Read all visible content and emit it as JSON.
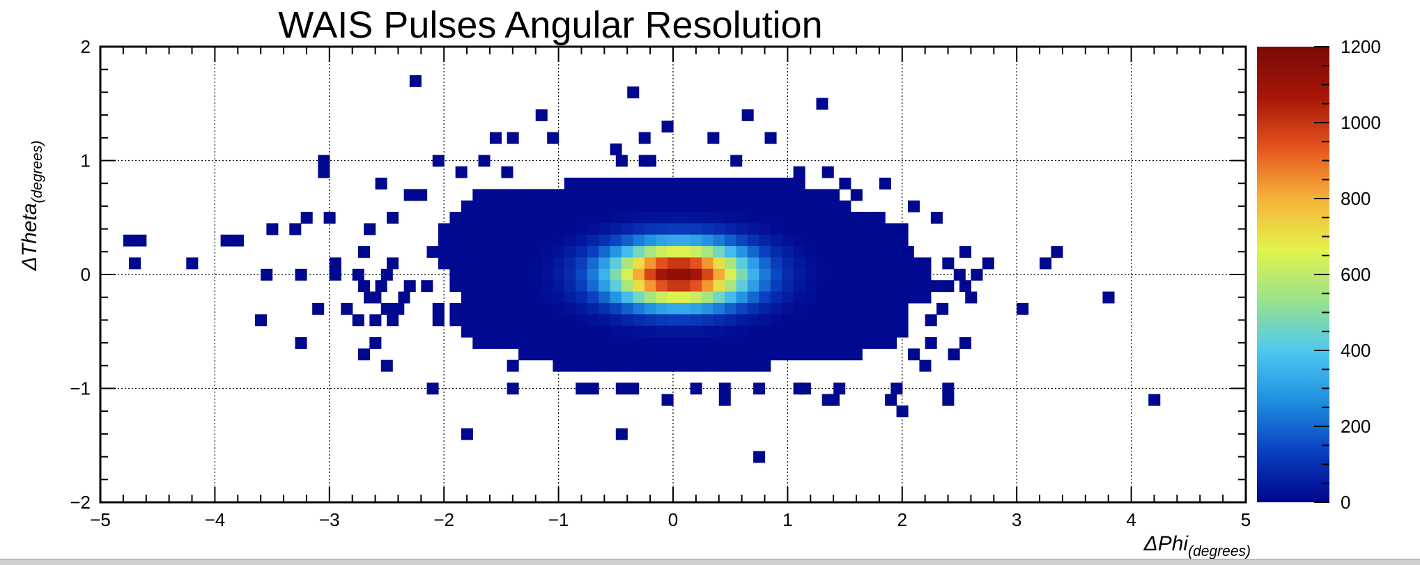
{
  "chart_data": {
    "type": "heatmap",
    "title": "WAIS Pulses Angular Resolution",
    "xlabel": "ΔPhi",
    "xlabel_sub": "(degrees)",
    "ylabel": "ΔTheta",
    "ylabel_sub": "(degrees)",
    "xlim": [
      -5,
      5
    ],
    "ylim": [
      -2,
      2
    ],
    "x_ticks": [
      "−5",
      "−4",
      "−3",
      "−2",
      "−1",
      "0",
      "1",
      "2",
      "3",
      "4",
      "5"
    ],
    "y_ticks": [
      "−2",
      "−1",
      "0",
      "1",
      "2"
    ],
    "grid": true,
    "colorbar": {
      "range": [
        0,
        1200
      ],
      "ticks": [
        "0",
        "200",
        "400",
        "600",
        "800",
        "1000",
        "1200"
      ],
      "colormap": "rainbow",
      "colors": [
        "#00068c",
        "#0a3fbf",
        "#1f8fe0",
        "#4fc8f0",
        "#9be38a",
        "#e3f24a",
        "#f7b23a",
        "#e5541e",
        "#a61608",
        "#7a0a05"
      ]
    },
    "bin_width": {
      "x": 0.1,
      "y": 0.1
    },
    "core": {
      "center_x": 0.05,
      "center_y": 0.0,
      "peak": 1150,
      "sigma_x": 0.42,
      "sigma_y": 0.19
    },
    "dense_region_rows": [
      {
        "y": 0.8,
        "x_from": -0.9,
        "x_to": 1.1
      },
      {
        "y": 0.7,
        "x_from": -1.7,
        "x_to": 1.4
      },
      {
        "y": 0.6,
        "x_from": -1.8,
        "x_to": 1.5
      },
      {
        "y": 0.5,
        "x_from": -1.9,
        "x_to": 1.8
      },
      {
        "y": 0.4,
        "x_from": -2.0,
        "x_to": 1.85
      },
      {
        "y": 0.3,
        "x_from": -2.0,
        "x_to": 2.0
      },
      {
        "y": 0.2,
        "x_from": -2.1,
        "x_to": 2.0
      },
      {
        "y": 0.1,
        "x_from": -2.0,
        "x_to": 2.2
      },
      {
        "y": 0.0,
        "x_from": -1.9,
        "x_to": 2.2
      },
      {
        "y": -0.1,
        "x_from": -1.9,
        "x_to": 2.3
      },
      {
        "y": -0.2,
        "x_from": -1.8,
        "x_to": 2.2
      },
      {
        "y": -0.3,
        "x_from": -1.9,
        "x_to": 2.0
      },
      {
        "y": -0.4,
        "x_from": -1.9,
        "x_to": 2.0
      },
      {
        "y": -0.5,
        "x_from": -1.8,
        "x_to": 2.0
      },
      {
        "y": -0.6,
        "x_from": -1.7,
        "x_to": 1.9
      },
      {
        "y": -0.7,
        "x_from": -1.3,
        "x_to": 1.6
      },
      {
        "y": -0.8,
        "x_from": -1.0,
        "x_to": 0.8
      }
    ],
    "sparse_bins": [
      [
        -2.25,
        1.7
      ],
      [
        -0.35,
        1.6
      ],
      [
        1.3,
        1.5
      ],
      [
        -1.15,
        1.4
      ],
      [
        0.65,
        1.4
      ],
      [
        -0.05,
        1.3
      ],
      [
        -1.55,
        1.2
      ],
      [
        -1.4,
        1.2
      ],
      [
        -1.05,
        1.2
      ],
      [
        -0.25,
        1.2
      ],
      [
        0.35,
        1.2
      ],
      [
        0.85,
        1.2
      ],
      [
        -0.5,
        1.1
      ],
      [
        -3.05,
        1.0
      ],
      [
        -2.05,
        1.0
      ],
      [
        -1.65,
        1.0
      ],
      [
        -0.45,
        1.0
      ],
      [
        -0.25,
        1.0
      ],
      [
        -0.2,
        1.0
      ],
      [
        0.55,
        1.0
      ],
      [
        -3.05,
        0.9
      ],
      [
        -1.85,
        0.9
      ],
      [
        -1.45,
        0.9
      ],
      [
        1.1,
        0.9
      ],
      [
        1.35,
        0.9
      ],
      [
        -2.55,
        0.8
      ],
      [
        1.5,
        0.8
      ],
      [
        1.85,
        0.8
      ],
      [
        -2.3,
        0.7
      ],
      [
        -2.2,
        0.7
      ],
      [
        1.6,
        0.7
      ],
      [
        2.1,
        0.6
      ],
      [
        2.3,
        0.5
      ],
      [
        -3.0,
        0.5
      ],
      [
        -3.2,
        0.5
      ],
      [
        -3.5,
        0.4
      ],
      [
        -3.3,
        0.4
      ],
      [
        -2.65,
        0.4
      ],
      [
        -2.45,
        0.5
      ],
      [
        2.0,
        0.4
      ],
      [
        -4.65,
        0.3
      ],
      [
        -4.75,
        0.3
      ],
      [
        -3.9,
        0.3
      ],
      [
        -3.8,
        0.3
      ],
      [
        -2.7,
        0.2
      ],
      [
        2.05,
        0.2
      ],
      [
        2.55,
        0.2
      ],
      [
        3.35,
        0.2
      ],
      [
        -4.7,
        0.1
      ],
      [
        -4.2,
        0.1
      ],
      [
        -2.95,
        0.1
      ],
      [
        -2.45,
        0.1
      ],
      [
        2.4,
        0.1
      ],
      [
        2.75,
        0.1
      ],
      [
        3.25,
        0.1
      ],
      [
        -3.55,
        0.0
      ],
      [
        -3.25,
        0.0
      ],
      [
        -2.95,
        0.0
      ],
      [
        -2.75,
        0.0
      ],
      [
        -2.5,
        0.0
      ],
      [
        2.5,
        0.0
      ],
      [
        2.65,
        0.0
      ],
      [
        -2.7,
        -0.1
      ],
      [
        -2.55,
        -0.1
      ],
      [
        -2.3,
        -0.1
      ],
      [
        -2.15,
        -0.1
      ],
      [
        2.4,
        -0.1
      ],
      [
        2.55,
        -0.1
      ],
      [
        -2.65,
        -0.2
      ],
      [
        -2.6,
        -0.2
      ],
      [
        -2.35,
        -0.2
      ],
      [
        2.6,
        -0.2
      ],
      [
        3.8,
        -0.2
      ],
      [
        -3.1,
        -0.3
      ],
      [
        -2.85,
        -0.3
      ],
      [
        -2.5,
        -0.3
      ],
      [
        -2.4,
        -0.3
      ],
      [
        -2.05,
        -0.3
      ],
      [
        2.35,
        -0.3
      ],
      [
        3.05,
        -0.3
      ],
      [
        -3.6,
        -0.4
      ],
      [
        -2.75,
        -0.4
      ],
      [
        -2.6,
        -0.4
      ],
      [
        -2.45,
        -0.4
      ],
      [
        -2.05,
        -0.4
      ],
      [
        2.25,
        -0.4
      ],
      [
        -3.25,
        -0.6
      ],
      [
        -2.6,
        -0.6
      ],
      [
        2.25,
        -0.6
      ],
      [
        2.55,
        -0.6
      ],
      [
        -2.7,
        -0.7
      ],
      [
        2.1,
        -0.7
      ],
      [
        2.45,
        -0.7
      ],
      [
        -2.5,
        -0.8
      ],
      [
        -1.4,
        -0.8
      ],
      [
        2.2,
        -0.8
      ],
      [
        -2.1,
        -1.0
      ],
      [
        -1.4,
        -1.0
      ],
      [
        -0.8,
        -1.0
      ],
      [
        -0.7,
        -1.0
      ],
      [
        -0.45,
        -1.0
      ],
      [
        -0.35,
        -1.0
      ],
      [
        0.2,
        -1.0
      ],
      [
        0.45,
        -1.0
      ],
      [
        0.75,
        -1.0
      ],
      [
        1.1,
        -1.0
      ],
      [
        1.15,
        -1.0
      ],
      [
        1.45,
        -1.0
      ],
      [
        1.95,
        -1.0
      ],
      [
        2.4,
        -1.0
      ],
      [
        -0.05,
        -1.1
      ],
      [
        0.45,
        -1.1
      ],
      [
        1.35,
        -1.1
      ],
      [
        1.4,
        -1.1
      ],
      [
        1.9,
        -1.1
      ],
      [
        2.4,
        -1.1
      ],
      [
        4.2,
        -1.1
      ],
      [
        2.0,
        -1.2
      ],
      [
        -1.8,
        -1.4
      ],
      [
        -0.45,
        -1.4
      ],
      [
        0.75,
        -1.6
      ]
    ]
  }
}
